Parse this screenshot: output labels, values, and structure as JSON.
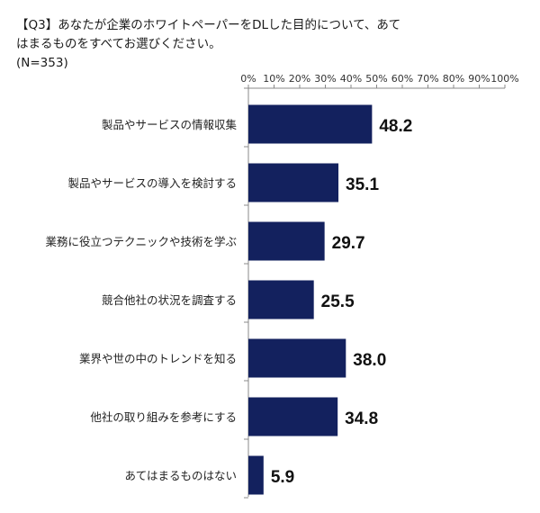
{
  "question": {
    "line1": "【Q3】あなたが企業のホワイトペーパーをDLした目的について、あて",
    "line2": "はまるものをすべてお選びください。",
    "sample": "(N=353)"
  },
  "chart_data": {
    "type": "bar",
    "orientation": "horizontal",
    "categories": [
      "製品やサービスの情報収集",
      "製品やサービスの導入を検討する",
      "業務に役立つテクニックや技術を学ぶ",
      "競合他社の状況を調査する",
      "業界や世の中のトレンドを知る",
      "他社の取り組みを参考にする",
      "あてはまるものはない"
    ],
    "values": [
      48.2,
      35.1,
      29.7,
      25.5,
      38.0,
      34.8,
      5.9
    ],
    "value_labels": [
      "48.2",
      "35.1",
      "29.7",
      "25.5",
      "38.0",
      "34.8",
      "5.9"
    ],
    "xlim": [
      0,
      100
    ],
    "x_ticks": [
      "0%",
      "10%",
      "20%",
      "30%",
      "40%",
      "50%",
      "60%",
      "70%",
      "80%",
      "90%",
      "100%"
    ],
    "axis_position": "top",
    "grid": false,
    "bar_color": "#13215e"
  }
}
